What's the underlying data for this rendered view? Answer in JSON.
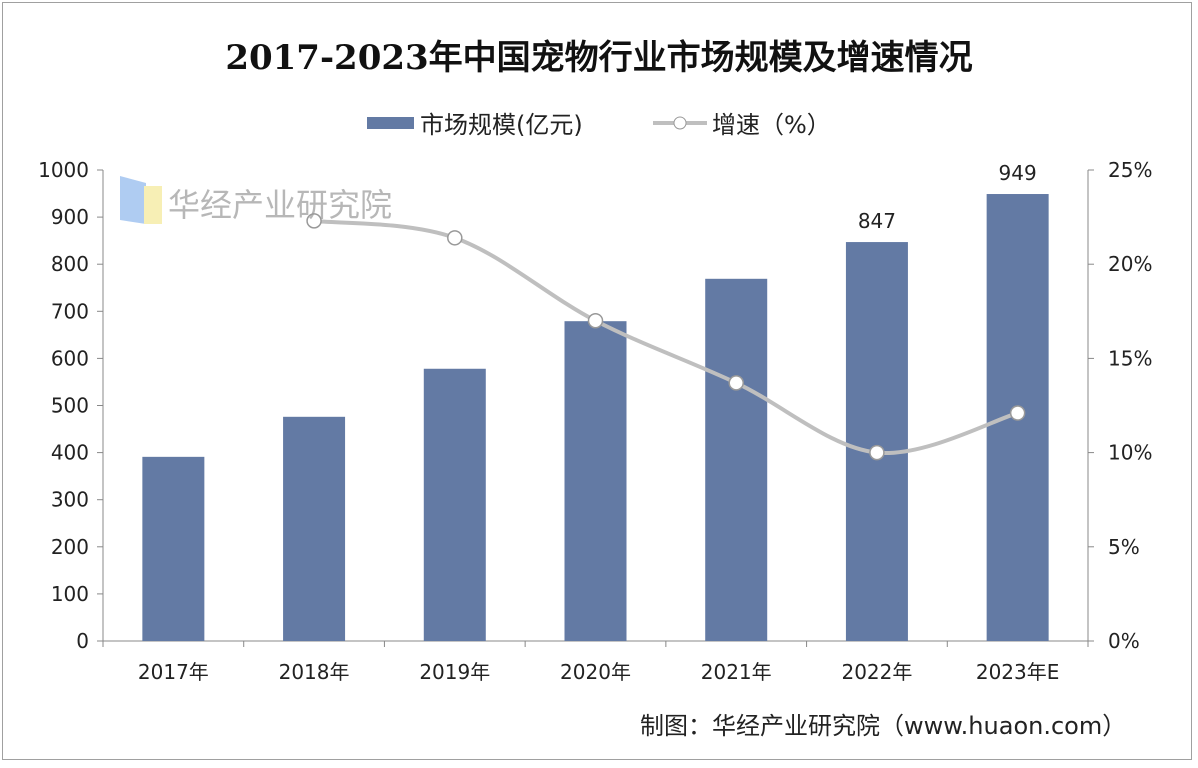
{
  "chart_data": {
    "type": "bar",
    "title": "2017-2023年中国宠物行业市场规模及增速情况",
    "categories": [
      "2017年",
      "2018年",
      "2019年",
      "2020年",
      "2021年",
      "2022年",
      "2023年E"
    ],
    "series": [
      {
        "name": "市场规模(亿元)",
        "type": "bar",
        "axis": "left",
        "color": "#637aa4",
        "values": [
          391,
          476,
          578,
          679,
          769,
          847,
          949
        ],
        "data_labels": [
          null,
          null,
          null,
          null,
          null,
          "847",
          "949"
        ]
      },
      {
        "name": "增速（%）",
        "type": "line",
        "axis": "right",
        "color": "#bfbfbf",
        "smooth": true,
        "values": [
          null,
          22.3,
          21.4,
          17.0,
          13.7,
          10.0,
          12.1
        ]
      }
    ],
    "ylim": [
      0,
      1000
    ],
    "yticks": [
      "0",
      "100",
      "200",
      "300",
      "400",
      "500",
      "600",
      "700",
      "800",
      "900",
      "1000"
    ],
    "y2lim": [
      0,
      25
    ],
    "y2ticks": [
      "0%",
      "5%",
      "10%",
      "15%",
      "20%",
      "25%"
    ],
    "grid": false,
    "legend": "top"
  },
  "source": "制图：华经产业研究院（www.huaon.com）",
  "watermark": "华经产业研究院"
}
